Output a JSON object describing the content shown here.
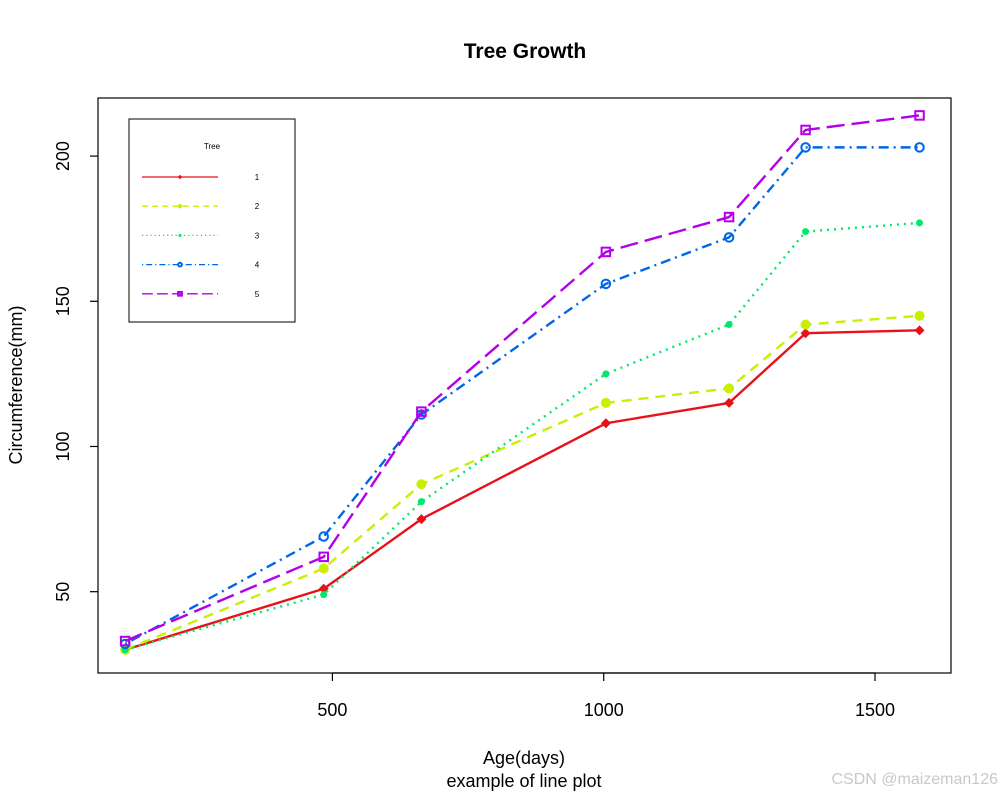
{
  "chart_data": {
    "type": "line",
    "title": "Tree Growth",
    "subtitle": "example of line plot",
    "xlabel": "Age(days)",
    "ylabel": "Circumference(mm)",
    "xlim": [
      68,
      1640
    ],
    "ylim": [
      22,
      220
    ],
    "x_ticks": [
      500,
      1000,
      1500
    ],
    "y_ticks": [
      50,
      100,
      150,
      200
    ],
    "x_tick_labels": [
      "500",
      "1000",
      "1500"
    ],
    "y_tick_labels": [
      "50",
      "100",
      "150",
      "200"
    ],
    "grid": false,
    "legend": {
      "title": "Tree",
      "placement": "top-left",
      "entries": [
        "1",
        "2",
        "3",
        "4",
        "5"
      ]
    },
    "x": [
      118,
      484,
      664,
      1004,
      1231,
      1372,
      1582
    ],
    "series": [
      {
        "name": "1",
        "color": "#e8111a",
        "dash": "solid",
        "marker": "diamond",
        "values": [
          30,
          51,
          75,
          108,
          115,
          139,
          140
        ]
      },
      {
        "name": "2",
        "color": "#c8f000",
        "dash": "dashed",
        "marker": "circle-filled",
        "values": [
          30,
          58,
          87,
          115,
          120,
          142,
          145
        ]
      },
      {
        "name": "3",
        "color": "#00e86a",
        "dash": "dotted",
        "marker": "dot",
        "values": [
          30,
          49,
          81,
          125,
          142,
          174,
          177
        ]
      },
      {
        "name": "4",
        "color": "#0066e8",
        "dash": "dotdash",
        "marker": "circle-open",
        "values": [
          32,
          69,
          111,
          156,
          172,
          203,
          203
        ]
      },
      {
        "name": "5",
        "color": "#b300e8",
        "dash": "longdash",
        "marker": "square-open",
        "values": [
          33,
          62,
          112,
          167,
          179,
          209,
          214
        ]
      }
    ]
  },
  "watermark": "CSDN @maizeman126"
}
